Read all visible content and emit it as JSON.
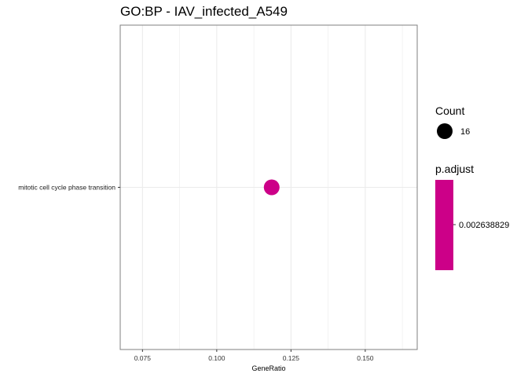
{
  "chart_data": {
    "type": "scatter",
    "title": "GO:BP - IAV_infected_A549",
    "xlabel": "GeneRatio",
    "ylabel": "",
    "xlim": [
      0.0675,
      0.1675
    ],
    "x_ticks": [
      0.075,
      0.1,
      0.125,
      0.15
    ],
    "x_tick_labels": [
      "0.075",
      "0.100",
      "0.125",
      "0.150"
    ],
    "categories": [
      "mitotic cell cycle phase transition"
    ],
    "points": [
      {
        "term": "mitotic cell cycle phase transition",
        "gene_ratio": 0.1185,
        "count": 16,
        "p_adjust": 0.002638829
      }
    ],
    "grid": true,
    "legend_position": "right",
    "legend": {
      "size_title": "Count",
      "size_entries": [
        {
          "value": 16,
          "label": "16"
        }
      ],
      "color_title": "p.adjust",
      "color_labels": [
        "0.002638829"
      ]
    },
    "colors": {
      "point": "#cc0088",
      "colorbar": "#cc0088",
      "grid": "#ebebeb",
      "panel_border": "#7f7f7f"
    }
  }
}
